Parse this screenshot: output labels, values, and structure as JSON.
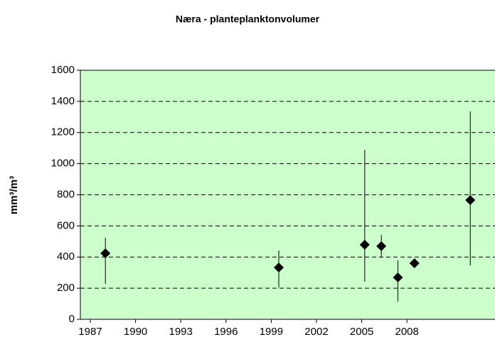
{
  "chart_data": {
    "type": "scatter",
    "title": "Næra - planteplanktonvolumer",
    "y_label": "mm³/m³",
    "x": [
      1988.0,
      1999.5,
      2005.2,
      2006.3,
      2007.4,
      2008.5,
      2012.2
    ],
    "series": [
      {
        "values": [
          424,
          333,
          479,
          470,
          269,
          360,
          766
        ],
        "low": [
          228,
          205,
          242,
          397,
          114,
          null,
          346
        ],
        "high": [
          524,
          442,
          1089,
          542,
          378,
          null,
          1336
        ],
        "color": "#000000"
      }
    ],
    "xlim": [
      1986.34,
      2013.84
    ],
    "xticks": [
      1987,
      1990,
      1993,
      1996,
      1999,
      2002,
      2005,
      2008
    ],
    "ylim": [
      0,
      1600
    ],
    "yticks": [
      0,
      200,
      400,
      600,
      800,
      1000,
      1200,
      1400,
      1600
    ],
    "grid": true,
    "background": "#ccffcc"
  }
}
